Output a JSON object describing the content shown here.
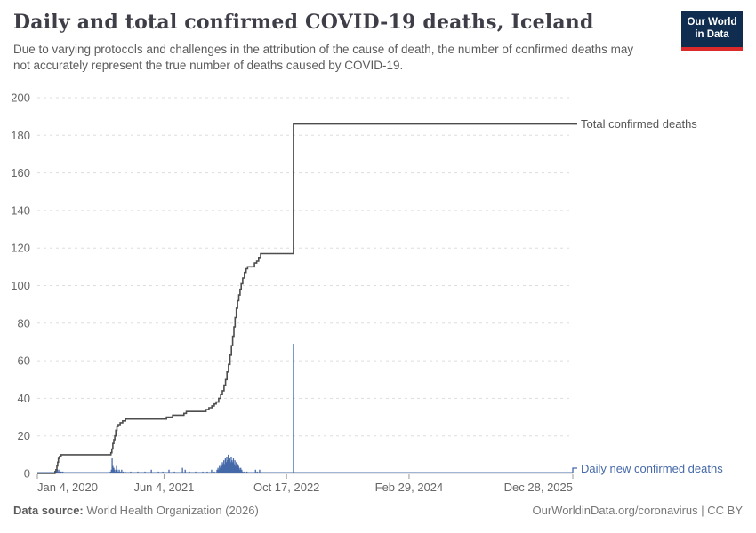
{
  "header": {
    "title": "Daily and total confirmed COVID-19 deaths, Iceland",
    "subtitle": "Due to varying protocols and challenges in the attribution of the cause of death, the number of confirmed deaths may not accurately represent the true number of deaths caused by COVID-19.",
    "logo": {
      "line1": "Our World",
      "line2": "in Data"
    }
  },
  "chart_data": {
    "type": "line",
    "title": "Daily and total confirmed COVID-19 deaths, Iceland",
    "grid": true,
    "colors": {
      "total_line": "#4d4d4d",
      "daily_bar": "#4569a9",
      "grid": "#dddddd",
      "axis_text": "#666666",
      "tick": "#999999",
      "legend_total": "#555555",
      "legend_daily": "#4569a9"
    },
    "y_axis": {
      "range": [
        0,
        200
      ],
      "ticks": [
        0,
        20,
        40,
        60,
        80,
        100,
        120,
        140,
        160,
        180,
        200
      ]
    },
    "x_axis": {
      "range_days": [
        0,
        2185
      ],
      "ticks": [
        {
          "label": "Jan 4, 2020",
          "day": 0,
          "anchor": "start"
        },
        {
          "label": "Jun 4, 2021",
          "day": 517,
          "anchor": "middle"
        },
        {
          "label": "Oct 17, 2022",
          "day": 1017,
          "anchor": "middle"
        },
        {
          "label": "Feb 29, 2024",
          "day": 1517,
          "anchor": "middle"
        },
        {
          "label": "Dec 28, 2025",
          "day": 2185,
          "anchor": "end"
        }
      ]
    },
    "series": [
      {
        "name": "Total confirmed deaths",
        "type": "step_line",
        "points": [
          [
            0,
            0
          ],
          [
            70,
            0
          ],
          [
            72,
            1
          ],
          [
            76,
            2
          ],
          [
            80,
            4
          ],
          [
            83,
            6
          ],
          [
            86,
            8
          ],
          [
            90,
            9
          ],
          [
            97,
            10
          ],
          [
            296,
            10
          ],
          [
            300,
            11
          ],
          [
            304,
            13
          ],
          [
            308,
            16
          ],
          [
            312,
            18
          ],
          [
            316,
            20
          ],
          [
            320,
            23
          ],
          [
            325,
            25
          ],
          [
            330,
            26
          ],
          [
            338,
            27
          ],
          [
            348,
            28
          ],
          [
            360,
            29
          ],
          [
            520,
            29
          ],
          [
            527,
            30
          ],
          [
            552,
            31
          ],
          [
            598,
            32
          ],
          [
            608,
            33
          ],
          [
            680,
            33
          ],
          [
            688,
            34
          ],
          [
            700,
            35
          ],
          [
            712,
            36
          ],
          [
            722,
            37
          ],
          [
            730,
            38
          ],
          [
            740,
            40
          ],
          [
            748,
            42
          ],
          [
            755,
            44
          ],
          [
            762,
            47
          ],
          [
            768,
            50
          ],
          [
            774,
            54
          ],
          [
            780,
            58
          ],
          [
            786,
            63
          ],
          [
            792,
            68
          ],
          [
            797,
            73
          ],
          [
            802,
            78
          ],
          [
            807,
            83
          ],
          [
            812,
            88
          ],
          [
            817,
            92
          ],
          [
            822,
            95
          ],
          [
            827,
            98
          ],
          [
            832,
            101
          ],
          [
            838,
            104
          ],
          [
            845,
            107
          ],
          [
            852,
            109
          ],
          [
            858,
            110
          ],
          [
            880,
            110
          ],
          [
            886,
            112
          ],
          [
            895,
            113
          ],
          [
            903,
            115
          ],
          [
            911,
            117
          ],
          [
            1045,
            117
          ],
          [
            1045,
            186
          ],
          [
            2185,
            186
          ]
        ]
      },
      {
        "name": "Daily new confirmed deaths",
        "type": "bar",
        "points": [
          [
            72,
            1
          ],
          [
            75,
            1
          ],
          [
            78,
            1
          ],
          [
            81,
            2
          ],
          [
            84,
            1
          ],
          [
            87,
            2
          ],
          [
            90,
            1
          ],
          [
            94,
            1
          ],
          [
            98,
            1
          ],
          [
            104,
            1
          ],
          [
            298,
            1
          ],
          [
            302,
            2
          ],
          [
            305,
            8
          ],
          [
            308,
            4
          ],
          [
            310,
            2
          ],
          [
            312,
            3
          ],
          [
            314,
            2
          ],
          [
            317,
            1
          ],
          [
            320,
            2
          ],
          [
            323,
            4
          ],
          [
            326,
            2
          ],
          [
            330,
            1
          ],
          [
            334,
            2
          ],
          [
            338,
            1
          ],
          [
            344,
            2
          ],
          [
            350,
            1
          ],
          [
            358,
            1
          ],
          [
            381,
            1
          ],
          [
            410,
            1
          ],
          [
            439,
            1
          ],
          [
            465,
            2
          ],
          [
            494,
            1
          ],
          [
            512,
            1
          ],
          [
            537,
            2
          ],
          [
            559,
            1
          ],
          [
            592,
            3
          ],
          [
            603,
            2
          ],
          [
            621,
            1
          ],
          [
            646,
            1
          ],
          [
            675,
            1
          ],
          [
            693,
            1
          ],
          [
            711,
            2
          ],
          [
            722,
            1
          ],
          [
            733,
            2
          ],
          [
            737,
            3
          ],
          [
            740,
            2
          ],
          [
            743,
            4
          ],
          [
            746,
            3
          ],
          [
            749,
            5
          ],
          [
            752,
            4
          ],
          [
            755,
            6
          ],
          [
            758,
            5
          ],
          [
            761,
            7
          ],
          [
            764,
            5
          ],
          [
            767,
            8
          ],
          [
            770,
            6
          ],
          [
            773,
            9
          ],
          [
            776,
            7
          ],
          [
            779,
            10
          ],
          [
            782,
            7
          ],
          [
            785,
            8
          ],
          [
            788,
            6
          ],
          [
            791,
            9
          ],
          [
            794,
            7
          ],
          [
            797,
            6
          ],
          [
            800,
            8
          ],
          [
            803,
            5
          ],
          [
            806,
            7
          ],
          [
            809,
            4
          ],
          [
            812,
            6
          ],
          [
            815,
            3
          ],
          [
            818,
            5
          ],
          [
            821,
            4
          ],
          [
            824,
            3
          ],
          [
            827,
            2
          ],
          [
            830,
            3
          ],
          [
            834,
            2
          ],
          [
            838,
            1
          ],
          [
            845,
            1
          ],
          [
            855,
            1
          ],
          [
            890,
            2
          ],
          [
            897,
            1
          ],
          [
            907,
            2
          ],
          [
            1045,
            69
          ]
        ]
      }
    ],
    "legend": {
      "total_label": "Total confirmed deaths",
      "daily_label": "Daily new confirmed deaths",
      "position": "right-of-line-ends"
    }
  },
  "footer": {
    "source_label": "Data source:",
    "source_value": " World Health Organization (2026)",
    "attribution": "OurWorldinData.org/coronavirus | CC BY"
  }
}
